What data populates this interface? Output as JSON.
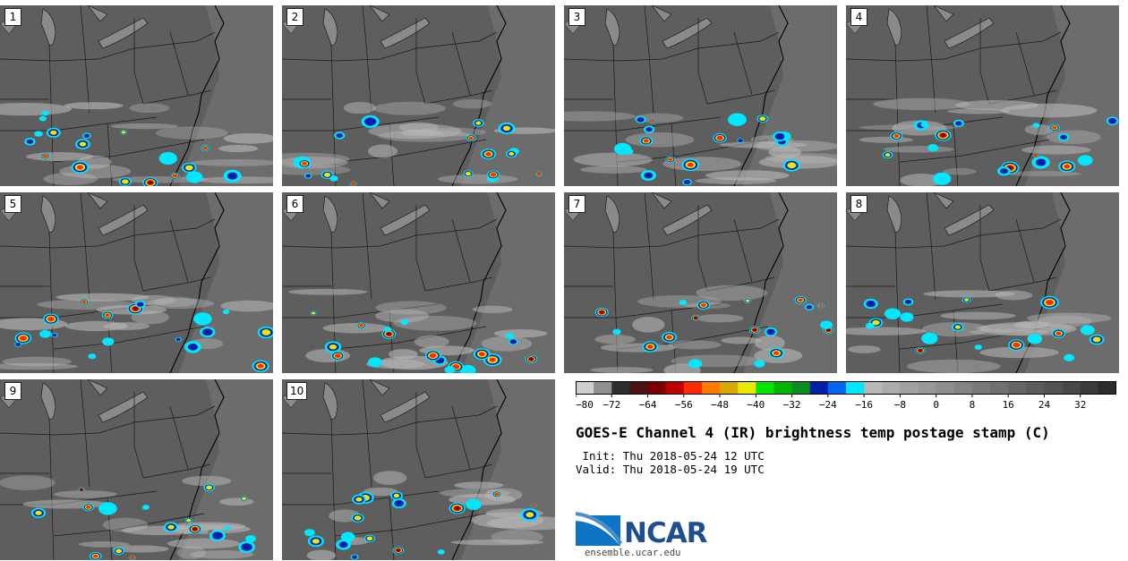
{
  "figure": {
    "title": "GOES-E Channel 4 (IR) brightness temp postage stamp (C)",
    "init": " Init: Thu 2018-05-24 12 UTC",
    "valid": "Valid: Thu 2018-05-24 19 UTC",
    "site": "ensemble.ucar.edu",
    "logo_text": "NCAR"
  },
  "panels": [
    {
      "label": "1"
    },
    {
      "label": "2"
    },
    {
      "label": "3"
    },
    {
      "label": "4"
    },
    {
      "label": "5"
    },
    {
      "label": "6"
    },
    {
      "label": "7"
    },
    {
      "label": "8"
    },
    {
      "label": "9"
    },
    {
      "label": "10"
    }
  ],
  "chart_data": {
    "type": "heatmap",
    "title": "GOES-E Channel 4 (IR) brightness temp postage stamp (C)",
    "units": "C",
    "colorbar": {
      "range": [
        -80,
        40
      ],
      "step": 4,
      "tick_labels": [
        "-80",
        "-72",
        "-64",
        "-56",
        "-48",
        "-40",
        "-32",
        "-24",
        "-16",
        "-8",
        "0",
        "8",
        "16",
        "24",
        "32"
      ],
      "colors": [
        "#cfcfcf",
        "#8f8f8f",
        "#2e2e2e",
        "#4a1414",
        "#7a0000",
        "#c00000",
        "#ff2a00",
        "#ff7a00",
        "#d9a800",
        "#e8e800",
        "#00e400",
        "#00b400",
        "#0a8c1e",
        "#0020a8",
        "#0066f0",
        "#00e8ff",
        "#b8b8b8",
        "#acacac",
        "#a2a2a2",
        "#989898",
        "#8e8e8e",
        "#848484",
        "#7a7a7a",
        "#707070",
        "#666666",
        "#5c5c5c",
        "#525252",
        "#484848",
        "#3a3a3a",
        "#2c2c2c"
      ]
    },
    "members": 10
  }
}
